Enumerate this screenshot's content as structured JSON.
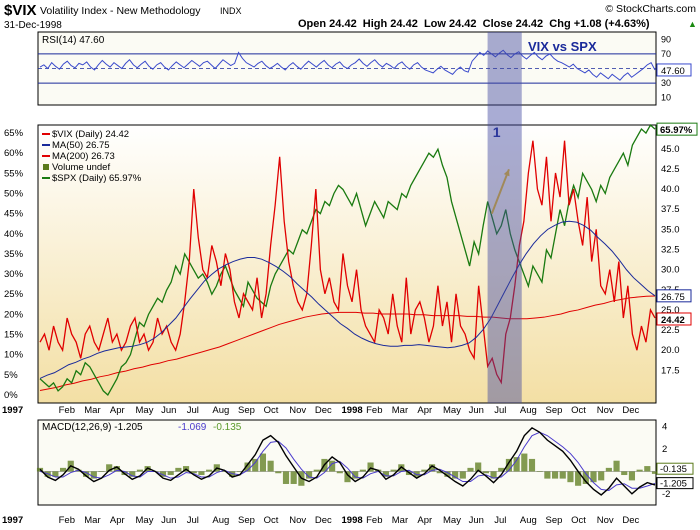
{
  "header": {
    "symbol": "$VIX",
    "name": "Volatility Index - New Methodology",
    "exchange": "INDX",
    "date": "31-Dec-1998",
    "brand": "© StockCharts.com",
    "quote": "Open 24.42  High 24.42  Low 24.42  Close 24.42  Chg +1.08 (+4.63%)",
    "quote_arrow": "▲"
  },
  "colors": {
    "price_bg_top": "#ffffff",
    "price_bg_bottom": "#f3dfa4",
    "panel_bg": "#fbfbf4",
    "vix": "#e00000",
    "spx": "#1a7a10",
    "ma50": "#1a2a9a",
    "ma200": "#e00000",
    "rsi": "#3a4acc",
    "macd": "#000000",
    "signal": "#4a3acc",
    "hist": "#5a7a1a",
    "highlight": "rgba(64,72,160,0.45)",
    "arrow": "#f0c020",
    "title_blue": "#1a2a9a"
  },
  "chart_data": [
    {
      "type": "line",
      "panel": "RSI",
      "legend": "RSI(14) 47.60",
      "title": "VIX vs SPX",
      "ylim": [
        0,
        100
      ],
      "y_ticks": [
        10,
        30,
        50,
        70,
        90
      ],
      "reference_lines": [
        30,
        50,
        70
      ],
      "current_label": "47.60",
      "series": [
        {
          "name": "RSI(14)",
          "values": [
            52,
            55,
            50,
            58,
            53,
            49,
            56,
            60,
            54,
            51,
            57,
            55,
            59,
            52,
            48,
            55,
            61,
            56,
            52,
            58,
            54,
            50,
            57,
            62,
            55,
            51,
            56,
            60,
            53,
            49,
            55,
            58,
            52,
            48,
            54,
            59,
            55,
            51,
            56,
            61,
            57,
            53,
            58,
            60,
            55,
            50,
            56,
            62,
            58,
            54,
            57,
            72,
            64,
            58,
            55,
            52,
            57,
            60,
            54,
            50,
            53,
            57,
            52,
            48,
            54,
            58,
            53,
            49,
            55,
            60,
            56,
            52,
            57,
            61,
            55,
            51,
            56,
            59,
            53,
            50,
            55,
            58,
            63,
            57,
            53,
            58,
            62,
            56,
            52,
            57,
            54,
            50,
            56,
            59,
            53,
            49,
            55,
            58,
            52,
            48,
            46,
            44,
            49,
            53,
            48,
            45,
            42,
            48,
            52,
            47,
            45,
            60,
            66,
            72,
            68,
            74,
            70,
            66,
            71,
            75,
            69,
            65,
            70,
            73,
            67,
            63,
            68,
            72,
            66,
            62,
            67,
            70,
            64,
            60,
            58,
            55,
            52,
            56,
            50,
            47,
            44,
            48,
            42,
            38,
            44,
            40,
            36,
            42,
            38,
            34,
            40,
            44,
            38,
            42,
            46,
            50,
            55,
            58,
            48
          ]
        }
      ]
    },
    {
      "type": "line",
      "panel": "Price",
      "legend": [
        "$VIX (Daily) 24.42",
        "MA(50) 26.75",
        "MA(200) 26.73",
        "Volume undef",
        "$SPX (Daily) 65.97%"
      ],
      "left_axis": {
        "label": "",
        "ylim": [
          -2,
          67
        ],
        "ticks": [
          "0%",
          "5%",
          "10%",
          "15%",
          "20%",
          "25%",
          "30%",
          "35%",
          "40%",
          "45%",
          "50%",
          "55%",
          "60%",
          "65%"
        ]
      },
      "right_axis": {
        "label": "",
        "ylim": [
          13.45,
          47.95
        ],
        "ticks": [
          "17.5",
          "20.0",
          "22.5",
          "25.0",
          "27.5",
          "30.0",
          "32.5",
          "35.0",
          "37.5",
          "40.0",
          "42.5",
          "45.0"
        ]
      },
      "right_labels": {
        "spx": "65.97%",
        "ma": "26.75",
        "vix": "24.42"
      },
      "x_labels": [
        "1997",
        "Feb",
        "Mar",
        "Apr",
        "May",
        "Jun",
        "Jul",
        "Aug",
        "Sep",
        "Oct",
        "Nov",
        "Dec",
        "1998",
        "Feb",
        "Mar",
        "Apr",
        "May",
        "Jun",
        "Jul",
        "Aug",
        "Sep",
        "Oct",
        "Nov",
        "Dec"
      ],
      "highlight_range": {
        "from": "1998-06-15",
        "to": "1998-07-25"
      },
      "annotation": {
        "text": "1",
        "at": "1998-06-28",
        "value_pct": 64.0
      },
      "arrow": {
        "from": [
          "1998-06-20",
          45.0
        ],
        "to": [
          "1998-07-10",
          56.0
        ]
      },
      "series": [
        {
          "name": "$VIX (Daily)",
          "axis": "right",
          "values": [
            21,
            22,
            20,
            23,
            21,
            20,
            24,
            22,
            21,
            19,
            22,
            23,
            21,
            20,
            22,
            24,
            21,
            22,
            20,
            21,
            23,
            24,
            21,
            22,
            20,
            21,
            24,
            22,
            23,
            21,
            20,
            22,
            26,
            31,
            40,
            34,
            30,
            29,
            33,
            31,
            28,
            32,
            30,
            26,
            24,
            27,
            26,
            25,
            29,
            24,
            27,
            33,
            38,
            44,
            36,
            31,
            28,
            26,
            25,
            27,
            33,
            40,
            30,
            27,
            29,
            26,
            25,
            32,
            28,
            26,
            30,
            25,
            23,
            22,
            21,
            25,
            24,
            22,
            27,
            23,
            21,
            29,
            22,
            25,
            26,
            24,
            21,
            23,
            28,
            23,
            26,
            21,
            27,
            23,
            22,
            20,
            19,
            28,
            23,
            18,
            19,
            17,
            16,
            22,
            24,
            28,
            33,
            36,
            42,
            46,
            40,
            38,
            44,
            36,
            42,
            39,
            46,
            38,
            40,
            36,
            33,
            39,
            31,
            35,
            28,
            27,
            30,
            26,
            31,
            24,
            28,
            22,
            20,
            23,
            21,
            25,
            24
          ]
        },
        {
          "name": "$SPX (Daily)",
          "axis": "left",
          "values": [
            4,
            3,
            2,
            3,
            1,
            2,
            4,
            3,
            6,
            5,
            8,
            7,
            5,
            3,
            1,
            0,
            2,
            4,
            7,
            8,
            10,
            14,
            18,
            17,
            20,
            22,
            24,
            23,
            26,
            28,
            32,
            30,
            35,
            33,
            31,
            29,
            30,
            28,
            25,
            27,
            30,
            32,
            29,
            26,
            24,
            22,
            28,
            26,
            24,
            23,
            22,
            27,
            30,
            32,
            34,
            36,
            35,
            38,
            41,
            40,
            43,
            46,
            45,
            48,
            47,
            50,
            52,
            51,
            49,
            47,
            50,
            46,
            42,
            45,
            48,
            46,
            44,
            48,
            47,
            46,
            50,
            49,
            52,
            54,
            56,
            58,
            60,
            59,
            61,
            57,
            54,
            48,
            44,
            40,
            36,
            32,
            38,
            35,
            42,
            48,
            44,
            40,
            42,
            46,
            40,
            36,
            33,
            30,
            27,
            32,
            30,
            28,
            36,
            34,
            40,
            46,
            42,
            48,
            52,
            49,
            55,
            53,
            51,
            48,
            52,
            50,
            54,
            56,
            58,
            60,
            57,
            62,
            64,
            66,
            65,
            67,
            65.97
          ]
        },
        {
          "name": "MA(50)",
          "axis": "right",
          "values": [
            16.5,
            16.9,
            17.2,
            17.7,
            18.2,
            18.5,
            18.9,
            19.2,
            19.6,
            19.9,
            20.1,
            20.3,
            20.4,
            20.5,
            20.7,
            21.0,
            21.5,
            22.2,
            23.1,
            24.0,
            25.2,
            26.4,
            27.5,
            28.6,
            29.4,
            30.1,
            30.6,
            31.0,
            31.3,
            31.5,
            31.5,
            31.3,
            30.9,
            30.4,
            29.8,
            29.1,
            28.2,
            27.4,
            26.6,
            25.7,
            24.9,
            24.1,
            23.3,
            22.7,
            22.0,
            21.5,
            21.1,
            20.8,
            20.6,
            20.5,
            20.5,
            20.6,
            20.6,
            20.7,
            20.6,
            20.5,
            20.4,
            20.3,
            20.4,
            20.6,
            20.9,
            21.6,
            22.6,
            23.9,
            25.6,
            27.3,
            29.0,
            30.6,
            32.0,
            33.2,
            34.2,
            35.0,
            35.5,
            35.9,
            36.0,
            35.9,
            35.5,
            34.9,
            34.0,
            33.2,
            32.3,
            31.2,
            30.0,
            29.0,
            28.2,
            27.4,
            26.75
          ]
        },
        {
          "name": "MA(200)",
          "axis": "right",
          "values": [
            15.0,
            15.2,
            15.4,
            15.7,
            15.9,
            16.2,
            16.4,
            16.7,
            16.9,
            17.2,
            17.4,
            17.7,
            17.9,
            18.2,
            18.4,
            18.7,
            18.9,
            19.2,
            19.5,
            19.8,
            20.1,
            20.4,
            20.8,
            21.2,
            21.6,
            22.0,
            22.4,
            22.8,
            23.2,
            23.5,
            23.8,
            24.1,
            24.3,
            24.5,
            24.6,
            24.7,
            24.7,
            24.7,
            24.6,
            24.6,
            24.5,
            24.5,
            24.5,
            24.5,
            24.4,
            24.4,
            24.3,
            24.3,
            24.3,
            24.3,
            24.2,
            24.2,
            24.1,
            24.1,
            24.0,
            23.9,
            23.9,
            23.9,
            24.0,
            24.1,
            24.3,
            24.5,
            24.8,
            25.0,
            25.3,
            25.6,
            25.8,
            26.1,
            26.3,
            26.5,
            26.6,
            26.7,
            26.73
          ]
        }
      ]
    },
    {
      "type": "line",
      "panel": "MACD",
      "legend": {
        "label": "MACD(12,26,9) -1.205",
        "signal": "-1.069",
        "hist": "-0.135"
      },
      "ylim": [
        -3,
        4.6
      ],
      "y_ticks": [
        -2,
        0,
        2,
        4
      ],
      "right_labels": {
        "hist": "-0.135",
        "macd": "-1.205"
      },
      "x_labels": [
        "1997",
        "Feb",
        "Mar",
        "Apr",
        "May",
        "Jun",
        "Jul",
        "Aug",
        "Sep",
        "Oct",
        "Nov",
        "Dec",
        "1998",
        "Feb",
        "Mar",
        "Apr",
        "May",
        "Jun",
        "Jul",
        "Aug",
        "Sep",
        "Oct",
        "Nov",
        "Dec"
      ],
      "series": [
        {
          "name": "MACD",
          "values": [
            0.2,
            -0.5,
            -0.8,
            -0.3,
            0.5,
            0.2,
            -0.4,
            -0.9,
            -0.6,
            0.1,
            0.4,
            -0.2,
            -0.7,
            -0.4,
            0.3,
            0.0,
            -0.6,
            -0.8,
            -0.3,
            0.2,
            -0.3,
            -0.7,
            -0.4,
            0.3,
            0.1,
            -0.5,
            -0.3,
            0.6,
            1.5,
            2.8,
            3.2,
            2.6,
            1.4,
            0.4,
            -0.6,
            -0.9,
            -0.5,
            0.6,
            1.3,
            0.8,
            -0.3,
            -0.9,
            -0.5,
            0.3,
            0.1,
            -0.7,
            -0.3,
            0.4,
            -0.1,
            -0.6,
            -0.2,
            0.5,
            0.1,
            -0.4,
            -0.9,
            -1.3,
            -0.7,
            0.1,
            -0.4,
            -1.0,
            -0.3,
            0.8,
            1.8,
            3.2,
            3.9,
            3.5,
            2.8,
            2.3,
            1.8,
            1.0,
            0.0,
            -0.9,
            -1.6,
            -2.1,
            -1.5,
            -0.6,
            -1.3,
            -2.0,
            -1.4,
            -1.0,
            -1.205
          ]
        },
        {
          "name": "Signal",
          "values": [
            0.0,
            -0.2,
            -0.5,
            -0.5,
            -0.1,
            0.1,
            -0.1,
            -0.5,
            -0.6,
            -0.3,
            0.1,
            0.0,
            -0.4,
            -0.5,
            0.0,
            0.0,
            -0.3,
            -0.6,
            -0.5,
            -0.1,
            -0.2,
            -0.5,
            -0.5,
            -0.1,
            0.1,
            -0.2,
            -0.3,
            0.1,
            0.8,
            1.8,
            2.6,
            2.7,
            2.1,
            1.1,
            0.2,
            -0.5,
            -0.6,
            -0.1,
            0.7,
            0.9,
            0.3,
            -0.5,
            -0.6,
            -0.2,
            0.0,
            -0.4,
            -0.4,
            0.0,
            0.1,
            -0.3,
            -0.3,
            0.1,
            0.2,
            -0.1,
            -0.5,
            -0.9,
            -0.9,
            -0.4,
            -0.3,
            -0.6,
            -0.5,
            0.1,
            1.0,
            2.2,
            3.2,
            3.5,
            3.2,
            2.7,
            2.2,
            1.6,
            0.8,
            -0.2,
            -1.0,
            -1.6,
            -1.7,
            -1.2,
            -1.1,
            -1.5,
            -1.5,
            -1.3,
            -1.069
          ]
        }
      ]
    }
  ]
}
